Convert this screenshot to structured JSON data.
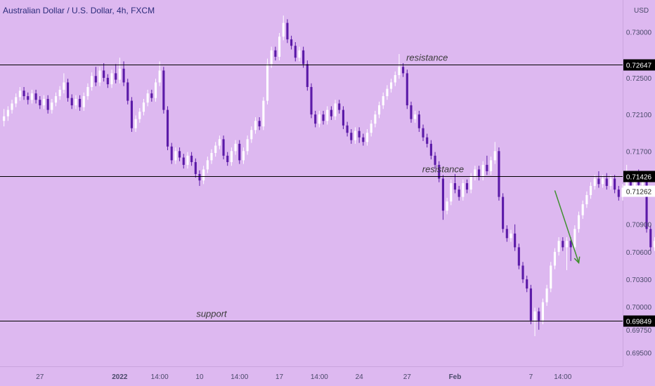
{
  "header": {
    "title": "Australian Dollar / U.S. Dollar, 4h, FXCM",
    "currency": "USD"
  },
  "colors": {
    "background": "#ddb8f0",
    "up": "#ffffff",
    "down": "#5b1aa8",
    "level_line": "#000000",
    "arrow": "#3f8f2f",
    "axis_text": "#4a4a6a",
    "label_bg": "#000000",
    "label_text": "#ffffff"
  },
  "chart_data": {
    "type": "candlestick",
    "title": "Australian Dollar / U.S. Dollar, 4h, FXCM",
    "ylim": [
      0.6935,
      0.7335
    ],
    "y_ticks": [
      "0.73000",
      "0.72500",
      "0.72100",
      "0.71700",
      "0.70900",
      "0.70600",
      "0.70300",
      "0.70000",
      "0.69750",
      "0.69500"
    ],
    "x_ticks": [
      {
        "label": "27",
        "index": 9
      },
      {
        "label": "2022",
        "index": 29
      },
      {
        "label": "14:00",
        "index": 39
      },
      {
        "label": "10",
        "index": 49
      },
      {
        "label": "14:00",
        "index": 59
      },
      {
        "label": "17",
        "index": 69
      },
      {
        "label": "14:00",
        "index": 79
      },
      {
        "label": "24",
        "index": 89
      },
      {
        "label": "27",
        "index": 101
      },
      {
        "label": "Feb",
        "index": 113
      },
      {
        "label": "7",
        "index": 132
      },
      {
        "label": "14:00",
        "index": 140
      }
    ],
    "x_range": [
      -1,
      155
    ],
    "levels": [
      {
        "name": "resistance",
        "value": 0.72647,
        "label": "0.72647",
        "text_index": 106
      },
      {
        "name": "resistance",
        "value": 0.71426,
        "label": "0.71426",
        "text_index": 110
      },
      {
        "name": "support",
        "value": 0.69849,
        "label": "0.69849",
        "text_index": 52
      }
    ],
    "current_price": {
      "value": 0.71262,
      "label": "0.71262"
    },
    "projection": {
      "from": {
        "index": 138,
        "value": 0.7127
      },
      "to": {
        "index": 144,
        "value": 0.7048
      }
    },
    "candles": [
      [
        0.7203,
        0.7208,
        0.7216,
        0.7197
      ],
      [
        0.7208,
        0.7215,
        0.7219,
        0.7203
      ],
      [
        0.7215,
        0.7222,
        0.7226,
        0.7211
      ],
      [
        0.7222,
        0.7229,
        0.7233,
        0.7218
      ],
      [
        0.7229,
        0.7236,
        0.724,
        0.7225
      ],
      [
        0.7236,
        0.723,
        0.724,
        0.7226
      ],
      [
        0.723,
        0.7226,
        0.7234,
        0.7221
      ],
      [
        0.7226,
        0.7233,
        0.7237,
        0.7222
      ],
      [
        0.7233,
        0.7226,
        0.7237,
        0.7222
      ],
      [
        0.7226,
        0.722,
        0.723,
        0.7216
      ],
      [
        0.722,
        0.7227,
        0.7231,
        0.7216
      ],
      [
        0.7227,
        0.7215,
        0.7231,
        0.7211
      ],
      [
        0.7215,
        0.7223,
        0.7227,
        0.7211
      ],
      [
        0.7223,
        0.723,
        0.7234,
        0.7219
      ],
      [
        0.723,
        0.7237,
        0.7241,
        0.7226
      ],
      [
        0.7237,
        0.7245,
        0.7255,
        0.7233
      ],
      [
        0.7245,
        0.7228,
        0.7249,
        0.7224
      ],
      [
        0.7228,
        0.722,
        0.7232,
        0.7216
      ],
      [
        0.722,
        0.7227,
        0.7231,
        0.7216
      ],
      [
        0.7227,
        0.7218,
        0.7231,
        0.7214
      ],
      [
        0.7218,
        0.723,
        0.7234,
        0.7214
      ],
      [
        0.723,
        0.724,
        0.7244,
        0.7226
      ],
      [
        0.724,
        0.7252,
        0.7256,
        0.7236
      ],
      [
        0.7252,
        0.7245,
        0.7262,
        0.7241
      ],
      [
        0.7245,
        0.7258,
        0.7262,
        0.7241
      ],
      [
        0.7258,
        0.725,
        0.7266,
        0.7246
      ],
      [
        0.725,
        0.7243,
        0.7254,
        0.7239
      ],
      [
        0.7243,
        0.7255,
        0.7259,
        0.7239
      ],
      [
        0.7255,
        0.7248,
        0.7265,
        0.7244
      ],
      [
        0.7248,
        0.726,
        0.7272,
        0.7244
      ],
      [
        0.726,
        0.7245,
        0.7268,
        0.7241
      ],
      [
        0.7245,
        0.7225,
        0.7249,
        0.7221
      ],
      [
        0.7225,
        0.7195,
        0.7229,
        0.7191
      ],
      [
        0.7195,
        0.7205,
        0.7209,
        0.7191
      ],
      [
        0.7205,
        0.7213,
        0.7217,
        0.7201
      ],
      [
        0.7213,
        0.7223,
        0.7227,
        0.7209
      ],
      [
        0.7223,
        0.7233,
        0.7237,
        0.7219
      ],
      [
        0.7233,
        0.7228,
        0.7237,
        0.7224
      ],
      [
        0.7228,
        0.7245,
        0.7249,
        0.7224
      ],
      [
        0.7245,
        0.7258,
        0.7268,
        0.7241
      ],
      [
        0.7258,
        0.7215,
        0.7262,
        0.7211
      ],
      [
        0.7215,
        0.7175,
        0.7219,
        0.7171
      ],
      [
        0.7175,
        0.716,
        0.7179,
        0.7156
      ],
      [
        0.716,
        0.717,
        0.7174,
        0.7156
      ],
      [
        0.717,
        0.7163,
        0.7174,
        0.7159
      ],
      [
        0.7163,
        0.7155,
        0.7167,
        0.7151
      ],
      [
        0.7155,
        0.7165,
        0.7169,
        0.7151
      ],
      [
        0.7165,
        0.7158,
        0.7169,
        0.7154
      ],
      [
        0.7158,
        0.7145,
        0.7162,
        0.7141
      ],
      [
        0.7145,
        0.7138,
        0.7149,
        0.7132
      ],
      [
        0.7138,
        0.715,
        0.7154,
        0.7134
      ],
      [
        0.715,
        0.716,
        0.7164,
        0.7146
      ],
      [
        0.716,
        0.7168,
        0.7172,
        0.7156
      ],
      [
        0.7168,
        0.7176,
        0.718,
        0.7164
      ],
      [
        0.7176,
        0.7183,
        0.7187,
        0.7172
      ],
      [
        0.7183,
        0.7165,
        0.7187,
        0.7161
      ],
      [
        0.7165,
        0.7158,
        0.7169,
        0.7154
      ],
      [
        0.7158,
        0.717,
        0.7174,
        0.7154
      ],
      [
        0.717,
        0.7178,
        0.7182,
        0.7166
      ],
      [
        0.7178,
        0.716,
        0.7182,
        0.7156
      ],
      [
        0.716,
        0.717,
        0.7174,
        0.7156
      ],
      [
        0.717,
        0.7183,
        0.7187,
        0.7166
      ],
      [
        0.7183,
        0.7193,
        0.7197,
        0.7179
      ],
      [
        0.7193,
        0.7203,
        0.7207,
        0.7189
      ],
      [
        0.7203,
        0.7197,
        0.7207,
        0.7193
      ],
      [
        0.7197,
        0.7225,
        0.7229,
        0.7193
      ],
      [
        0.7225,
        0.7265,
        0.7271,
        0.7221
      ],
      [
        0.7265,
        0.728,
        0.7284,
        0.7261
      ],
      [
        0.728,
        0.7273,
        0.7284,
        0.7269
      ],
      [
        0.7273,
        0.7295,
        0.7299,
        0.7269
      ],
      [
        0.7295,
        0.731,
        0.7318,
        0.7291
      ],
      [
        0.731,
        0.7292,
        0.7314,
        0.7288
      ],
      [
        0.7292,
        0.7285,
        0.7296,
        0.7281
      ],
      [
        0.7285,
        0.7272,
        0.7289,
        0.7268
      ],
      [
        0.7272,
        0.728,
        0.7284,
        0.7268
      ],
      [
        0.728,
        0.7265,
        0.7284,
        0.7261
      ],
      [
        0.7265,
        0.724,
        0.7269,
        0.7236
      ],
      [
        0.724,
        0.721,
        0.7244,
        0.7206
      ],
      [
        0.721,
        0.72,
        0.7214,
        0.7196
      ],
      [
        0.72,
        0.721,
        0.7214,
        0.7196
      ],
      [
        0.721,
        0.7203,
        0.7214,
        0.7199
      ],
      [
        0.7203,
        0.7215,
        0.7219,
        0.7199
      ],
      [
        0.7215,
        0.7208,
        0.7219,
        0.7204
      ],
      [
        0.7208,
        0.7222,
        0.7226,
        0.7204
      ],
      [
        0.7222,
        0.7215,
        0.7226,
        0.7211
      ],
      [
        0.7215,
        0.7198,
        0.7219,
        0.7194
      ],
      [
        0.7198,
        0.719,
        0.7202,
        0.7186
      ],
      [
        0.719,
        0.7182,
        0.7194,
        0.7178
      ],
      [
        0.7182,
        0.7192,
        0.7196,
        0.7178
      ],
      [
        0.7192,
        0.7185,
        0.7196,
        0.7179
      ],
      [
        0.7185,
        0.718,
        0.7189,
        0.7176
      ],
      [
        0.718,
        0.719,
        0.7194,
        0.7176
      ],
      [
        0.719,
        0.72,
        0.7204,
        0.7186
      ],
      [
        0.72,
        0.721,
        0.7214,
        0.7196
      ],
      [
        0.721,
        0.722,
        0.7224,
        0.7206
      ],
      [
        0.722,
        0.723,
        0.7234,
        0.7216
      ],
      [
        0.723,
        0.7238,
        0.7242,
        0.7226
      ],
      [
        0.7238,
        0.7245,
        0.7249,
        0.7234
      ],
      [
        0.7245,
        0.7253,
        0.7257,
        0.7241
      ],
      [
        0.7253,
        0.7262,
        0.7276,
        0.7249
      ],
      [
        0.7262,
        0.7255,
        0.7266,
        0.7251
      ],
      [
        0.7255,
        0.722,
        0.7259,
        0.7216
      ],
      [
        0.722,
        0.7205,
        0.7224,
        0.7201
      ],
      [
        0.7205,
        0.721,
        0.7214,
        0.7201
      ],
      [
        0.721,
        0.7195,
        0.7214,
        0.7191
      ],
      [
        0.7195,
        0.7185,
        0.7199,
        0.7181
      ],
      [
        0.7185,
        0.7178,
        0.7189,
        0.7174
      ],
      [
        0.7178,
        0.7165,
        0.7182,
        0.7161
      ],
      [
        0.7165,
        0.7155,
        0.7169,
        0.7151
      ],
      [
        0.7155,
        0.714,
        0.7159,
        0.7136
      ],
      [
        0.714,
        0.7105,
        0.7144,
        0.7095
      ],
      [
        0.7105,
        0.7115,
        0.7119,
        0.7101
      ],
      [
        0.7115,
        0.7135,
        0.7139,
        0.7111
      ],
      [
        0.7135,
        0.7128,
        0.7145,
        0.7124
      ],
      [
        0.7128,
        0.712,
        0.7132,
        0.7116
      ],
      [
        0.712,
        0.7135,
        0.7139,
        0.7116
      ],
      [
        0.7135,
        0.7128,
        0.7139,
        0.7124
      ],
      [
        0.7128,
        0.7142,
        0.7146,
        0.7124
      ],
      [
        0.7142,
        0.715,
        0.7154,
        0.7138
      ],
      [
        0.715,
        0.7142,
        0.7154,
        0.7138
      ],
      [
        0.7142,
        0.7155,
        0.7159,
        0.7138
      ],
      [
        0.7155,
        0.7148,
        0.7165,
        0.7144
      ],
      [
        0.7148,
        0.716,
        0.7164,
        0.7144
      ],
      [
        0.716,
        0.717,
        0.718,
        0.7156
      ],
      [
        0.717,
        0.712,
        0.7174,
        0.7116
      ],
      [
        0.712,
        0.7085,
        0.7124,
        0.7081
      ],
      [
        0.7085,
        0.7075,
        0.7089,
        0.7071
      ],
      [
        0.7075,
        0.708,
        0.7084,
        0.7071
      ],
      [
        0.708,
        0.7065,
        0.709,
        0.7061
      ],
      [
        0.7065,
        0.7045,
        0.7069,
        0.7041
      ],
      [
        0.7045,
        0.703,
        0.7049,
        0.7026
      ],
      [
        0.703,
        0.702,
        0.7034,
        0.7016
      ],
      [
        0.702,
        0.6985,
        0.7024,
        0.6981
      ],
      [
        0.6985,
        0.6995,
        0.6999,
        0.6968
      ],
      [
        0.6995,
        0.6985,
        0.6999,
        0.6975
      ],
      [
        0.6985,
        0.7005,
        0.7009,
        0.6981
      ],
      [
        0.7005,
        0.702,
        0.7024,
        0.7001
      ],
      [
        0.702,
        0.7045,
        0.7049,
        0.7016
      ],
      [
        0.7045,
        0.706,
        0.7064,
        0.7041
      ],
      [
        0.706,
        0.7072,
        0.7076,
        0.7056
      ],
      [
        0.7072,
        0.7065,
        0.7076,
        0.7061
      ],
      [
        0.7065,
        0.7072,
        0.7076,
        0.704
      ],
      [
        0.7072,
        0.7065,
        0.7076,
        0.705
      ],
      [
        0.7065,
        0.7085,
        0.7089,
        0.7061
      ],
      [
        0.7085,
        0.71,
        0.7104,
        0.7081
      ],
      [
        0.71,
        0.7112,
        0.7116,
        0.7096
      ],
      [
        0.7112,
        0.7122,
        0.7126,
        0.7108
      ],
      [
        0.7122,
        0.7132,
        0.7136,
        0.7118
      ],
      [
        0.7132,
        0.714,
        0.7144,
        0.7128
      ],
      [
        0.714,
        0.7134,
        0.7148,
        0.713
      ],
      [
        0.7134,
        0.714,
        0.7144,
        0.713
      ],
      [
        0.714,
        0.7132,
        0.7146,
        0.7128
      ],
      [
        0.7132,
        0.714,
        0.7144,
        0.7128
      ],
      [
        0.714,
        0.7128,
        0.7144,
        0.7124
      ],
      [
        0.7128,
        0.712,
        0.7132,
        0.7116
      ],
      [
        0.712,
        0.713,
        0.7134,
        0.7116
      ],
      [
        0.713,
        0.7138,
        0.7155,
        0.7126
      ],
      [
        0.7138,
        0.713,
        0.7142,
        0.7126
      ],
      [
        0.713,
        0.714,
        0.7144,
        0.7126
      ],
      [
        0.714,
        0.7133,
        0.715,
        0.7129
      ],
      [
        0.7133,
        0.714,
        0.7144,
        0.7129
      ],
      [
        0.714,
        0.7085,
        0.7144,
        0.7081
      ],
      [
        0.7085,
        0.7065,
        0.7089,
        0.7061
      ],
      [
        0.7065,
        0.7072,
        0.7076,
        0.7061
      ],
      [
        0.7072,
        0.7085,
        0.7089,
        0.7068
      ],
      [
        0.7085,
        0.7092,
        0.7096,
        0.7081
      ],
      [
        0.7092,
        0.71,
        0.7104,
        0.7088
      ],
      [
        0.71,
        0.711,
        0.7114,
        0.7096
      ],
      [
        0.711,
        0.712,
        0.7124,
        0.7106
      ],
      [
        0.712,
        0.713,
        0.7134,
        0.7116
      ],
      [
        0.713,
        0.7137,
        0.7141,
        0.7126
      ],
      [
        0.7137,
        0.7115,
        0.7141,
        0.7111
      ],
      [
        0.7115,
        0.7125,
        0.7129,
        0.7111
      ],
      [
        0.7125,
        0.7133,
        0.7137,
        0.7121
      ],
      [
        0.7133,
        0.7126,
        0.7137,
        0.7122
      ]
    ]
  }
}
